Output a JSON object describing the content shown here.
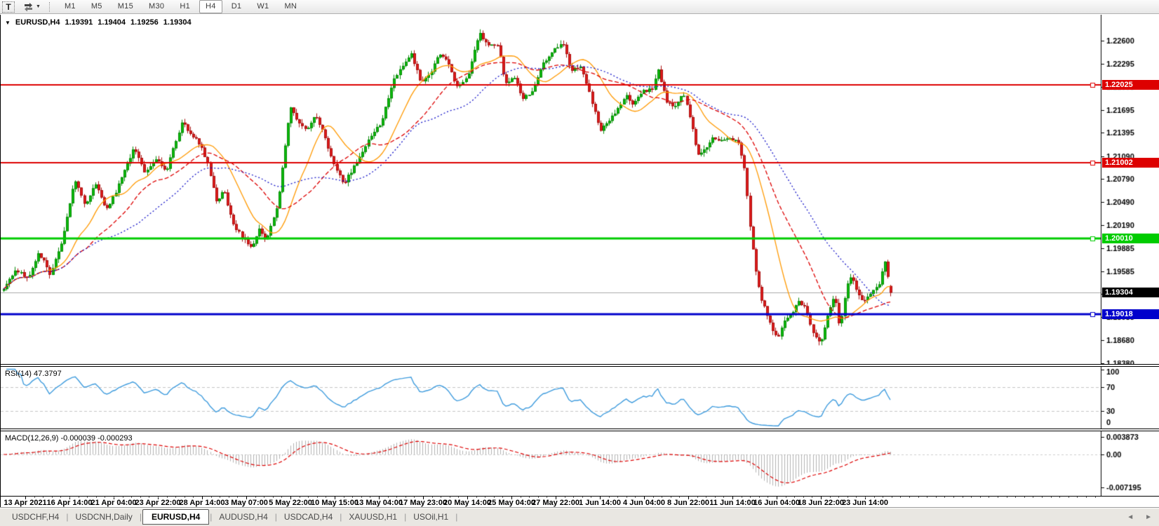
{
  "toolbar": {
    "text_tool": "T",
    "timeframes": [
      "M1",
      "M5",
      "M15",
      "M30",
      "H1",
      "H4",
      "D1",
      "W1",
      "MN"
    ],
    "active_timeframe": "H4"
  },
  "tabs": {
    "items": [
      "USDCHF,H4",
      "USDCNH,Daily",
      "EURUSD,H4",
      "AUDUSD,H4",
      "USDCAD,H4",
      "XAUUSD,H1",
      "USOil,H1"
    ],
    "active": "EURUSD,H4",
    "left_arrow": "◄",
    "right_arrow": "►"
  },
  "chart_data": {
    "type": "candlestick",
    "symbol": "EURUSD",
    "timeframe": "H4",
    "title": "EURUSD,H4",
    "collapse_icon": "▼",
    "current_bar": {
      "open": 1.19391,
      "high": 1.19404,
      "low": 1.19256,
      "close": 1.19304
    },
    "candle_count": 310,
    "colors": {
      "bull_fill": "#0cbc0c",
      "bull_stroke": "#078a07",
      "bear_fill": "#e01c1c",
      "bear_stroke": "#a81010",
      "axis_text": "#000000"
    },
    "price_axis": {
      "ticks": [
        "1.22600",
        "1.22295",
        "1.21995",
        "1.21695",
        "1.21395",
        "1.21090",
        "1.20790",
        "1.20490",
        "1.20190",
        "1.19885",
        "1.19585",
        "1.19285",
        "1.18985",
        "1.18680",
        "1.18380"
      ],
      "range": [
        1.1838,
        1.226
      ]
    },
    "x_axis": {
      "labels": [
        "13 Apr 2021",
        "16 Apr 14:00",
        "21 Apr 04:00",
        "23 Apr 22:00",
        "28 Apr 14:00",
        "3 May 07:00",
        "5 May 22:00",
        "10 May 15:00",
        "13 May 04:00",
        "17 May 23:00",
        "20 May 14:00",
        "25 May 04:00",
        "27 May 22:00",
        "1 Jun 14:00",
        "4 Jun 04:00",
        "8 Jun 22:00",
        "11 Jun 14:00",
        "16 Jun 04:00",
        "18 Jun 22:00",
        "23 Jun 14:00"
      ]
    },
    "levels": [
      {
        "price": 1.22025,
        "label": "1.22025",
        "color": "#dd0000",
        "line_width": 2
      },
      {
        "price": 1.21002,
        "label": "1.21002",
        "color": "#dd0000",
        "line_width": 2
      },
      {
        "price": 1.2001,
        "label": "1.20010",
        "color": "#00cc00",
        "line_width": 3
      },
      {
        "price": 1.19018,
        "label": "1.19018",
        "color": "#0000cc",
        "line_width": 3
      }
    ],
    "current_price": {
      "value": 1.19304,
      "label": "1.19304",
      "line_color": "#aaaaaa",
      "box_color": "#000000"
    },
    "moving_averages": [
      {
        "name": "fast-ma",
        "period": 16,
        "color": "#ff9900",
        "dash": []
      },
      {
        "name": "medium-ma",
        "period": 30,
        "color": "#dd0000",
        "dash": [
          6,
          3
        ]
      },
      {
        "name": "slow-ma",
        "period": 48,
        "color": "#1616c8",
        "dash": [
          2,
          3
        ]
      }
    ],
    "price_path": [
      [
        0,
        1.1933
      ],
      [
        0.012,
        1.196
      ],
      [
        0.028,
        1.195
      ],
      [
        0.04,
        1.1983
      ],
      [
        0.052,
        1.1955
      ],
      [
        0.064,
        1.1992
      ],
      [
        0.073,
        1.204
      ],
      [
        0.08,
        1.2079
      ],
      [
        0.092,
        1.2043
      ],
      [
        0.104,
        1.2075
      ],
      [
        0.116,
        1.2038
      ],
      [
        0.127,
        1.2065
      ],
      [
        0.147,
        1.2121
      ],
      [
        0.159,
        1.2088
      ],
      [
        0.171,
        1.2107
      ],
      [
        0.183,
        1.2088
      ],
      [
        0.201,
        1.2155
      ],
      [
        0.21,
        1.2139
      ],
      [
        0.221,
        1.2125
      ],
      [
        0.23,
        1.2098
      ],
      [
        0.24,
        1.2047
      ],
      [
        0.248,
        1.2066
      ],
      [
        0.258,
        1.202
      ],
      [
        0.27,
        1.2001
      ],
      [
        0.28,
        1.199
      ],
      [
        0.288,
        1.2015
      ],
      [
        0.296,
        1.1997
      ],
      [
        0.309,
        1.2047
      ],
      [
        0.323,
        1.2176
      ],
      [
        0.331,
        1.2157
      ],
      [
        0.341,
        1.2143
      ],
      [
        0.351,
        1.2162
      ],
      [
        0.361,
        1.2139
      ],
      [
        0.37,
        1.2104
      ],
      [
        0.383,
        1.2073
      ],
      [
        0.394,
        1.2093
      ],
      [
        0.404,
        1.2113
      ],
      [
        0.415,
        1.2139
      ],
      [
        0.426,
        1.2153
      ],
      [
        0.438,
        1.2205
      ],
      [
        0.449,
        1.2226
      ],
      [
        0.46,
        1.2242
      ],
      [
        0.47,
        1.2205
      ],
      [
        0.481,
        1.2217
      ],
      [
        0.491,
        1.2242
      ],
      [
        0.502,
        1.2229
      ],
      [
        0.511,
        1.2199
      ],
      [
        0.523,
        1.2211
      ],
      [
        0.536,
        1.227
      ],
      [
        0.547,
        1.2254
      ],
      [
        0.557,
        1.2256
      ],
      [
        0.565,
        1.2205
      ],
      [
        0.576,
        1.221
      ],
      [
        0.586,
        1.2185
      ],
      [
        0.597,
        1.2196
      ],
      [
        0.608,
        1.2231
      ],
      [
        0.62,
        1.2247
      ],
      [
        0.63,
        1.2257
      ],
      [
        0.639,
        1.2222
      ],
      [
        0.65,
        1.2226
      ],
      [
        0.66,
        1.2194
      ],
      [
        0.672,
        1.2143
      ],
      [
        0.681,
        1.2155
      ],
      [
        0.691,
        1.2168
      ],
      [
        0.701,
        1.2189
      ],
      [
        0.71,
        1.2177
      ],
      [
        0.721,
        1.2194
      ],
      [
        0.731,
        1.2196
      ],
      [
        0.738,
        1.2223
      ],
      [
        0.747,
        1.218
      ],
      [
        0.756,
        1.2174
      ],
      [
        0.766,
        1.2192
      ],
      [
        0.774,
        1.2159
      ],
      [
        0.782,
        1.211
      ],
      [
        0.792,
        1.2119
      ],
      [
        0.8,
        1.2134
      ],
      [
        0.809,
        1.213
      ],
      [
        0.82,
        1.2132
      ],
      [
        0.829,
        1.2125
      ],
      [
        0.835,
        1.2093
      ],
      [
        0.842,
        1.2011
      ],
      [
        0.848,
        1.1955
      ],
      [
        0.855,
        1.1919
      ],
      [
        0.861,
        1.19
      ],
      [
        0.867,
        1.1882
      ],
      [
        0.873,
        1.1871
      ],
      [
        0.881,
        1.1896
      ],
      [
        0.889,
        1.1905
      ],
      [
        0.897,
        1.1919
      ],
      [
        0.905,
        1.1908
      ],
      [
        0.913,
        1.1875
      ],
      [
        0.921,
        1.1866
      ],
      [
        0.929,
        1.1899
      ],
      [
        0.937,
        1.1928
      ],
      [
        0.943,
        1.1882
      ],
      [
        0.95,
        1.1937
      ],
      [
        0.956,
        1.1951
      ],
      [
        0.963,
        1.1928
      ],
      [
        0.971,
        1.1919
      ],
      [
        0.979,
        1.1933
      ],
      [
        0.987,
        1.1942
      ],
      [
        0.993,
        1.1974
      ],
      [
        1,
        1.19304
      ]
    ],
    "rsi": {
      "label": "RSI(14) 47.3797",
      "period": 14,
      "value": 47.3797,
      "color": "#3e9bdd",
      "level_lines": [
        70,
        30
      ],
      "axis_ticks": [
        100,
        70,
        30,
        0
      ],
      "range": [
        0,
        100
      ]
    },
    "macd": {
      "label": "MACD(12,26,9) -0.000039 -0.000293",
      "fast": 12,
      "slow": 26,
      "signal": 9,
      "macd_value": -3.9e-05,
      "signal_value": -0.000293,
      "hist_color": "#b2b2b2",
      "signal_color": "#dd0000",
      "axis_ticks": [
        0.003873,
        0,
        -0.007195
      ],
      "axis_tick_labels": [
        "0.003873",
        "0.00",
        "-0.007195"
      ]
    }
  }
}
